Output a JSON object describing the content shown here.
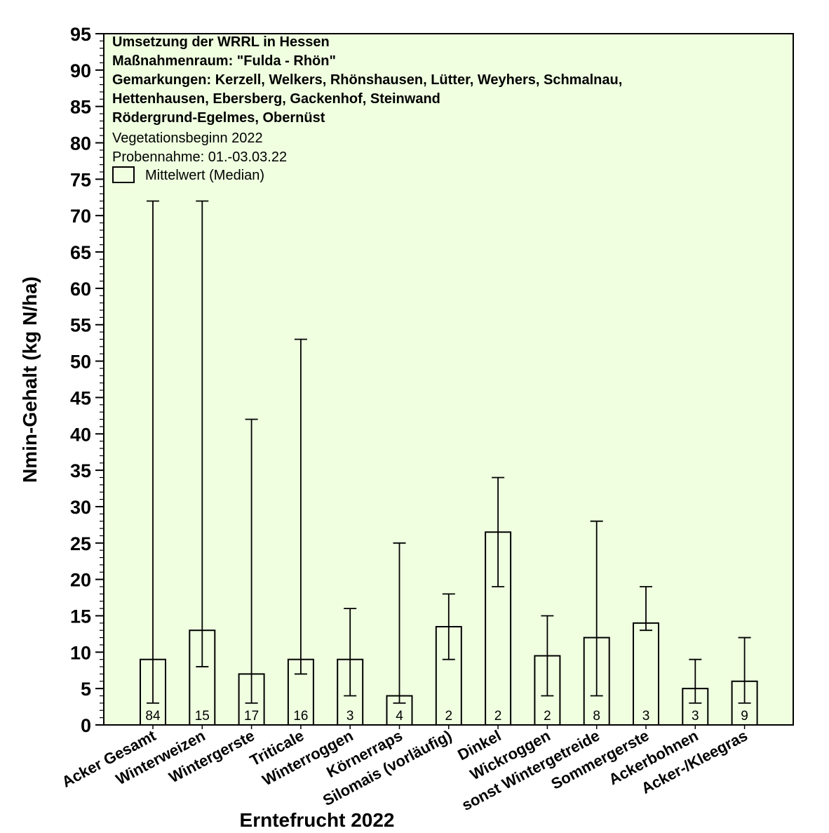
{
  "chart_data": {
    "type": "bar",
    "title_lines_bold": [
      "Umsetzung der WRRL in Hessen",
      "Maßnahmenraum: \"Fulda - Rhön\"",
      "Gemarkungen: Kerzell, Welkers, Rhönshausen, Lütter, Weyhers, Schmalnau,",
      "Hettenhausen, Ebersberg, Gackenhof, Steinwand",
      "Rödergrund-Egelmes, Obernüst"
    ],
    "subtitle_lines": [
      "Vegetationsbeginn 2022",
      "Probennahme: 01.-03.03.22"
    ],
    "legend": {
      "label": "Mittelwert (Median)",
      "placement": "top-left"
    },
    "xlabel": "Erntefrucht 2022",
    "ylabel": "Nmin-Gehalt (kg N/ha)",
    "ylim": [
      0,
      95
    ],
    "ytick_step": 5,
    "yminor_step": 1,
    "background": "#efffe0",
    "bar_fill": "#efffe0",
    "bar_stroke": "#000000",
    "categories": [
      "Acker Gesamt",
      "Winterweizen",
      "Wintergerste",
      "Triticale",
      "Winterroggen",
      "Körnerraps",
      "Silomais (vorläufig)",
      "Dinkel",
      "Wickroggen",
      "sonst Wintergetreide",
      "Sommergerste",
      "Ackerbohnen",
      "Acker-/Kleegras"
    ],
    "values": [
      9,
      13,
      7,
      9,
      9,
      4,
      13.5,
      26.5,
      9.5,
      12,
      14,
      5,
      6
    ],
    "min": [
      3,
      8,
      3,
      7,
      4,
      3,
      9,
      19,
      4,
      4,
      13,
      3,
      3
    ],
    "max": [
      72,
      72,
      42,
      53,
      16,
      25,
      18,
      34,
      15,
      28,
      19,
      9,
      12
    ],
    "counts": [
      "84",
      "15",
      "17",
      "16",
      "3",
      "4",
      "2",
      "2",
      "2",
      "8",
      "3",
      "3",
      "9"
    ]
  }
}
